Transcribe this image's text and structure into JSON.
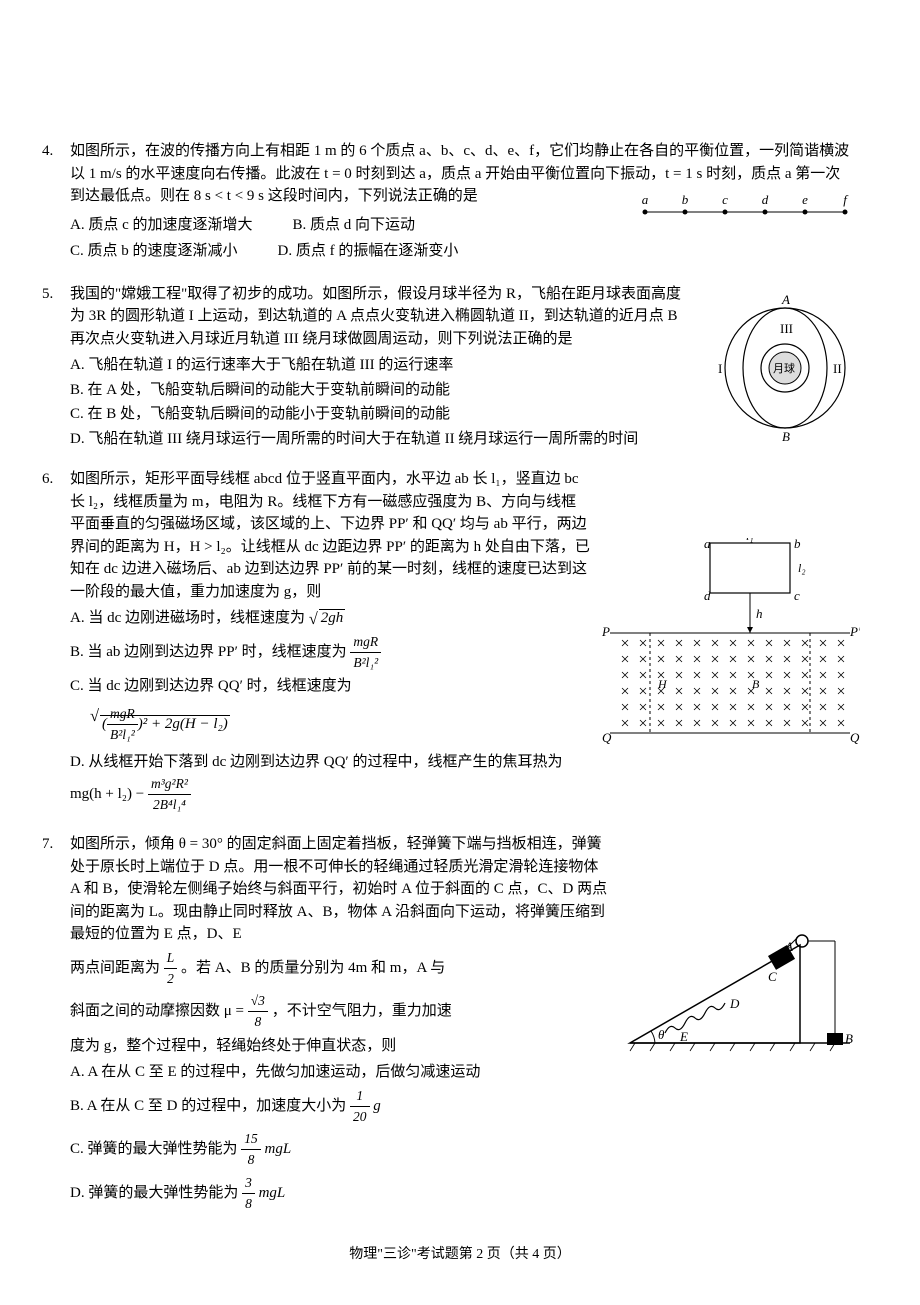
{
  "q4": {
    "num": "4.",
    "stem": "如图所示，在波的传播方向上有相距 1 m 的 6 个质点 a、b、c、d、e、f，它们均静止在各自的平衡位置，一列简谐横波以 1 m/s 的水平速度向右传播。此波在 t = 0 时刻到达 a，质点 a 开始由平衡位置向下振动，t = 1 s 时刻，质点 a 第一次到达最低点。则在 8 s < t < 9 s 这段时间内，下列说法正确的是",
    "optA": "A. 质点 c 的加速度逐渐增大",
    "optB": "B. 质点 d 向下运动",
    "optC": "C. 质点 b 的速度逐渐减小",
    "optD": "D. 质点 f 的振幅在逐渐变小",
    "labels": [
      "a",
      "b",
      "c",
      "d",
      "e",
      "f"
    ]
  },
  "q5": {
    "num": "5.",
    "stem": "我国的\"嫦娥工程\"取得了初步的成功。如图所示，假设月球半径为 R，飞船在距月球表面高度为 3R 的圆形轨道 I 上运动，到达轨道的 A 点点火变轨进入椭圆轨道 II，到达轨道的近月点 B 再次点火变轨进入月球近月轨道 III 绕月球做圆周运动，则下列说法正确的是",
    "optA": "A. 飞船在轨道 I 的运行速率大于飞船在轨道 III 的运行速率",
    "optB": "B. 在 A 处，飞船变轨后瞬间的动能大于变轨前瞬间的动能",
    "optC": "C. 在 B 处，飞船变轨后瞬间的动能小于变轨前瞬间的动能",
    "optD": "D. 飞船在轨道 III 绕月球运行一周所需的时间大于在轨道 II 绕月球运行一周所需的时间",
    "figLabels": {
      "A": "A",
      "B": "B",
      "I": "I",
      "II": "II",
      "III": "III",
      "moon": "月球"
    }
  },
  "q6": {
    "num": "6.",
    "stem": "如图所示，矩形平面导线框 abcd 位于竖直平面内，水平边 ab 长 l₁，竖直边 bc 长 l₂，线框质量为 m，电阻为 R。线框下方有一磁感应强度为 B、方向与线框平面垂直的匀强磁场区域，该区域的上、下边界 PP′ 和 QQ′ 均与 ab 平行，两边界间的距离为 H，H > l₂。让线框从 dc 边距边界 PP′ 的距离为 h 处自由下落，已知在 dc 边进入磁场后、ab 边到达边界 PP′ 前的某一时刻，线框的速度已达到这一阶段的最大值，重力加速度为 g，则",
    "optA_pre": "A. 当 dc 边刚进磁场时，线框速度为 ",
    "optA_sqrt": "2gh",
    "optB_pre": "B. 当 ab 边刚到达边界 PP′ 时，线框速度为",
    "optB_num": "mgR",
    "optB_den": "B²l₁²",
    "optC_pre": "C. 当 dc 边刚到达边界 QQ′ 时，线框速度为",
    "optC_num": "mgR",
    "optC_den": "B²l₁²",
    "optC_rest": ")² + 2g(H − l₂)",
    "optD_pre": "D. 从线框开始下落到 dc 边刚到达边界 QQ′ 的过程中，线框产生的焦耳热为 mg(h + l₂) − ",
    "optD_num": "m³g²R²",
    "optD_den": "2B⁴l₁⁴",
    "figLabels": {
      "a": "a",
      "b": "b",
      "c": "c",
      "d": "d",
      "l1": "l₁",
      "l2": "l₂",
      "h": "h",
      "H": "H",
      "B": "B",
      "P": "P",
      "Pp": "P′",
      "Q": "Q",
      "Qp": "Q′"
    }
  },
  "q7": {
    "num": "7.",
    "stem": "如图所示，倾角 θ = 30° 的固定斜面上固定着挡板，轻弹簧下端与挡板相连，弹簧处于原长时上端位于 D 点。用一根不可伸长的轻绳通过轻质光滑定滑轮连接物体 A 和 B，使滑轮左侧绳子始终与斜面平行，初始时 A 位于斜面的 C 点，C、D 两点间的距离为 L。现由静止同时释放 A、B，物体 A 沿斜面向下运动，将弹簧压缩到最短的位置为 E 点，D、E",
    "stem2_pre": "两点间距离为",
    "stem2_num": "L",
    "stem2_den": "2",
    "stem2_post": "。若 A、B 的质量分别为 4m 和 m，A 与",
    "stem3_pre": "斜面之间的动摩擦因数 μ = ",
    "stem3_num": "√3",
    "stem3_den": "8",
    "stem3_post": "，不计空气阻力，重力加速",
    "stem4": "度为 g，整个过程中，轻绳始终处于伸直状态，则",
    "optA": "A. A 在从 C 至 E 的过程中，先做匀加速运动，后做匀减速运动",
    "optB_pre": "B. A 在从 C 至 D 的过程中，加速度大小为",
    "optB_num": "1",
    "optB_den": "20",
    "optB_post": " g",
    "optC_pre": "C. 弹簧的最大弹性势能为",
    "optC_num": "15",
    "optC_den": "8",
    "optC_post": "mgL",
    "optD_pre": "D. 弹簧的最大弹性势能为",
    "optD_num": "3",
    "optD_den": "8",
    "optD_post": "mgL",
    "figLabels": {
      "A": "A",
      "B": "B",
      "C": "C",
      "D": "D",
      "E": "E",
      "theta": "θ"
    }
  },
  "footer": "物理\"三诊\"考试题第 2 页（共 4 页）"
}
